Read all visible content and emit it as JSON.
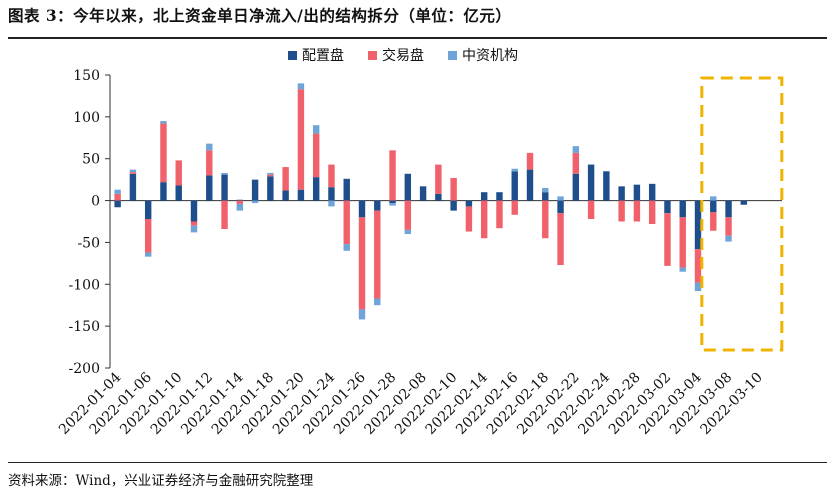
{
  "header": {
    "title": "图表 3：今年以来，北上资金单日净流入/出的结构拆分（单位：亿元）"
  },
  "footer": {
    "source": "资料来源：Wind，兴业证券经济与金融研究院整理"
  },
  "colors": {
    "配置盘": "#1f4e8c",
    "交易盘": "#f0616b",
    "中资机构": "#6fa4d8",
    "highlight": "#f0b400"
  },
  "chart_data": {
    "type": "bar",
    "stacked": true,
    "ylim": [
      -200,
      150
    ],
    "yticks": [
      150,
      100,
      50,
      0,
      -50,
      -100,
      -150,
      -200
    ],
    "legend": [
      "配置盘",
      "交易盘",
      "中资机构"
    ],
    "legend_position": "top",
    "xtick_labels": [
      "2022-01-04",
      "2022-01-06",
      "2022-01-10",
      "2022-01-12",
      "2022-01-14",
      "2022-01-18",
      "2022-01-20",
      "2022-01-24",
      "2022-01-26",
      "2022-01-28",
      "2022-02-08",
      "2022-02-10",
      "2022-02-14",
      "2022-02-16",
      "2022-02-18",
      "2022-02-22",
      "2022-02-24",
      "2022-02-28",
      "2022-03-02",
      "2022-03-04",
      "2022-03-08",
      "2022-03-10"
    ],
    "categories": [
      "2022-01-04",
      "2022-01-05",
      "2022-01-06",
      "2022-01-07",
      "2022-01-10",
      "2022-01-11",
      "2022-01-12",
      "2022-01-13",
      "2022-01-14",
      "2022-01-17",
      "2022-01-18",
      "2022-01-19",
      "2022-01-20",
      "2022-01-21",
      "2022-01-24",
      "2022-01-25",
      "2022-01-26",
      "2022-01-27",
      "2022-01-28",
      "2022-02-07",
      "2022-02-08",
      "2022-02-09",
      "2022-02-10",
      "2022-02-11",
      "2022-02-14",
      "2022-02-15",
      "2022-02-16",
      "2022-02-17",
      "2022-02-18",
      "2022-02-21",
      "2022-02-22",
      "2022-02-23",
      "2022-02-24",
      "2022-02-25",
      "2022-02-28",
      "2022-03-01",
      "2022-03-02",
      "2022-03-03",
      "2022-03-04",
      "2022-03-07",
      "2022-03-08",
      "2022-03-09",
      "2022-03-10",
      "2022-03-11"
    ],
    "series": [
      {
        "name": "配置盘",
        "values": [
          -8,
          32,
          -22,
          22,
          18,
          -25,
          30,
          31,
          1,
          25,
          29,
          12,
          13,
          28,
          16,
          26,
          -20,
          -12,
          -3,
          32,
          17,
          8,
          -12,
          -7,
          10,
          10,
          35,
          37,
          10,
          -15,
          32,
          43,
          35,
          17,
          19,
          20,
          -15,
          -20,
          -58,
          -14,
          -20,
          -5,
          0,
          0
        ]
      },
      {
        "name": "交易盘",
        "values": [
          8,
          2,
          -40,
          70,
          30,
          -5,
          30,
          -34,
          -4,
          0,
          2,
          28,
          120,
          52,
          27,
          -52,
          -110,
          -105,
          60,
          -35,
          0,
          35,
          27,
          -30,
          -45,
          -33,
          -17,
          20,
          -45,
          -62,
          25,
          -22,
          0,
          -25,
          -25,
          -28,
          -63,
          -60,
          -40,
          -22,
          -22,
          0,
          0,
          0
        ]
      },
      {
        "name": "中资机构",
        "values": [
          5,
          3,
          -5,
          3,
          0,
          -8,
          8,
          2,
          -8,
          -3,
          2,
          0,
          7,
          10,
          -7,
          -8,
          -12,
          -8,
          -3,
          -5,
          0,
          0,
          0,
          0,
          0,
          0,
          3,
          0,
          5,
          5,
          8,
          0,
          0,
          0,
          0,
          0,
          0,
          -5,
          -10,
          5,
          -7,
          0,
          0,
          0
        ]
      }
    ]
  }
}
